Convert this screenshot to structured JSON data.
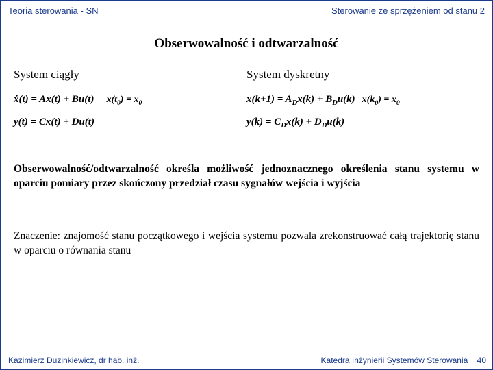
{
  "header": {
    "left": "Teoria sterowania - SN",
    "right": "Sterowanie ze sprzężeniem od stanu 2"
  },
  "title": "Obserwowalność i odtwarzalność",
  "continuous": {
    "label": "System ciągły",
    "eq1a": "ẋ(t) = Ax(t) + Bu(t)",
    "eq1b": "x(t₀) = x₀",
    "eq2a": "y(t) = Cx(t) + Du(t)"
  },
  "discrete": {
    "label": "System dyskretny",
    "eq1a": "x(k+1) = A_D x(k) + B_D u(k)",
    "eq1b": "x(k₀) = x₀",
    "eq2a": "y(k) = C_D x(k) + D_D u(k)"
  },
  "para1": "Obserwowalność/odtwarzalność określa możliwość jednoznacznego określenia stanu systemu w oparciu pomiary przez skończony przedział czasu sygnałów wejścia i wyjścia",
  "para2": "Znaczenie: znajomość stanu początkowego i wejścia systemu pozwala zrekonstruować całą trajektorię stanu w oparciu o równania stanu",
  "footer": {
    "left": "Kazimierz Duzinkiewicz, dr hab. inż.",
    "right": "Katedra Inżynierii Systemów Sterowania",
    "page": "40"
  },
  "colors": {
    "border": "#1a3a8a",
    "header_text": "#1a3a8a",
    "body_text": "#000000",
    "background": "#ffffff"
  }
}
